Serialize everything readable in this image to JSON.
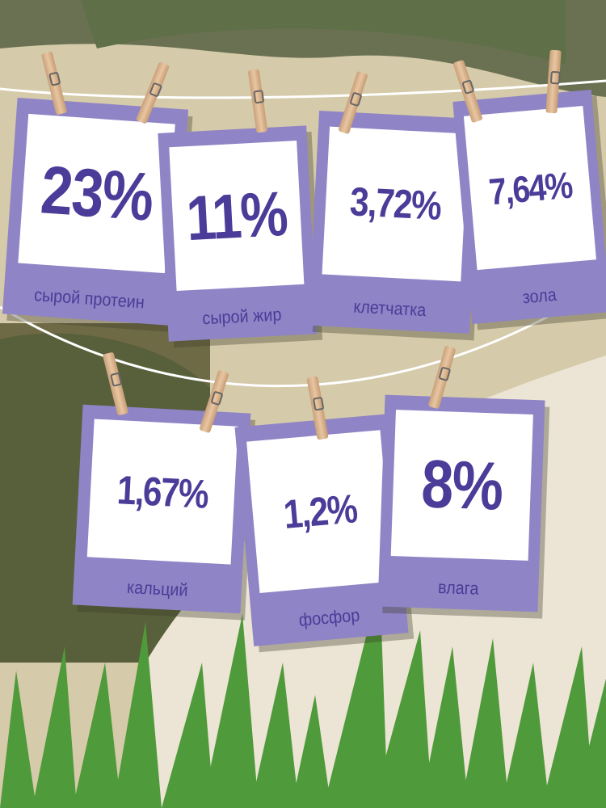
{
  "colors": {
    "card": "#8f84c6",
    "text": "#4a3c98",
    "grass": "#4f9a3a",
    "paper": "#ece4d4"
  },
  "cards": [
    {
      "value": "23%",
      "label": "сырой протеин"
    },
    {
      "value": "11%",
      "label": "сырой жир"
    },
    {
      "value": "3,72%",
      "label": "клетчатка"
    },
    {
      "value": "7,64%",
      "label": "зола"
    },
    {
      "value": "1,67%",
      "label": "кальций"
    },
    {
      "value": "1,2%",
      "label": "фосфор"
    },
    {
      "value": "8%",
      "label": "влага"
    }
  ]
}
